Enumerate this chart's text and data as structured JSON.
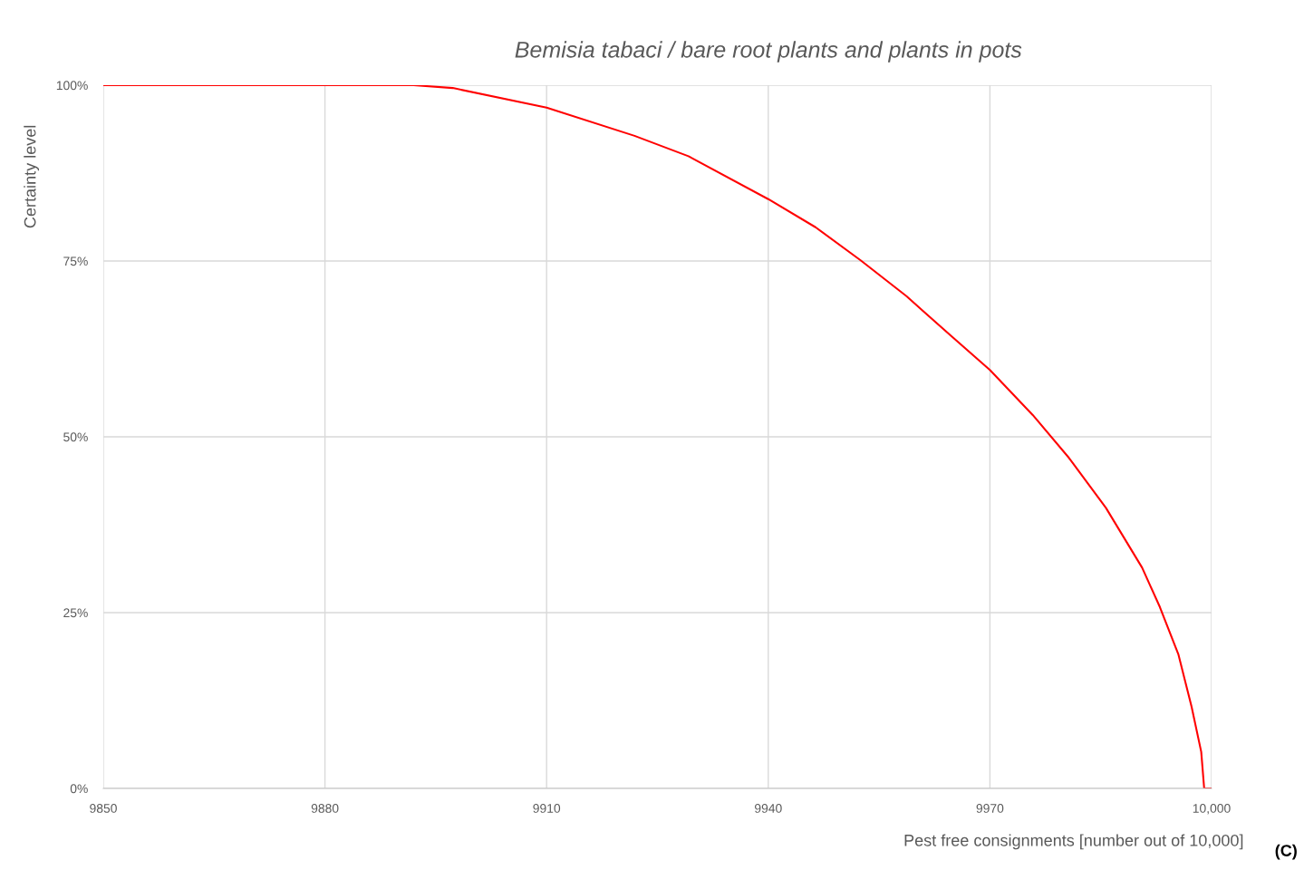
{
  "chart_data": {
    "type": "line",
    "title": "Bemisia tabaci / bare root plants and plants in pots",
    "xlabel": "Pest free consignments [number out of 10,000]",
    "ylabel": "Certainty level",
    "annotations": [
      "(C)"
    ],
    "x": [
      9850,
      9892,
      9897.3,
      9910,
      9921.9,
      9929.2,
      9940,
      9946.4,
      9952.5,
      9958.7,
      9964.8,
      9970,
      9975.8,
      9980.7,
      9985.7,
      9990.6,
      9993,
      9995.5,
      9997.3,
      9998.6,
      9999,
      10000
    ],
    "series": [
      {
        "color": "#ff0000",
        "values": [
          100,
          100,
          99.6,
          96.8,
          92.8,
          89.9,
          83.8,
          79.8,
          75.1,
          70.0,
          64.3,
          59.5,
          53.1,
          47.0,
          39.9,
          31.4,
          25.8,
          19.1,
          11.6,
          5.2,
          0,
          0
        ]
      }
    ],
    "xlim": [
      9850,
      10000
    ],
    "xticks": [
      9850,
      9880,
      9910,
      9940,
      9970,
      {
        "value": 10000,
        "label": "10,000"
      }
    ],
    "ylim": [
      0,
      100
    ],
    "yticks": [
      {
        "value": 0,
        "label": "0%"
      },
      {
        "value": 25,
        "label": "25%"
      },
      {
        "value": 50,
        "label": "50%"
      },
      {
        "value": 75,
        "label": "75%"
      },
      {
        "value": 100,
        "label": "100%"
      }
    ],
    "grid": true,
    "marker": "none",
    "line_style": "solid"
  }
}
